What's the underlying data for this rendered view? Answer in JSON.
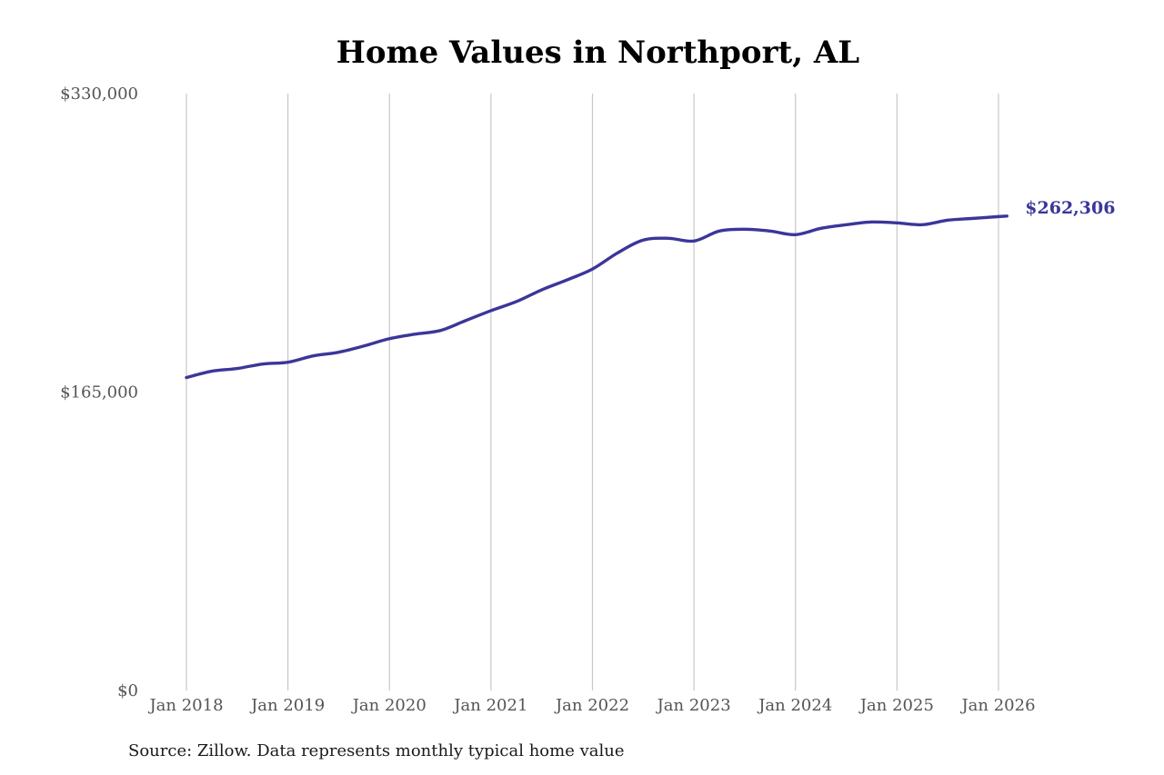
{
  "chart_data": {
    "type": "line",
    "title": "Home Values in Northport, AL",
    "xlabel": "",
    "ylabel": "",
    "ylim": [
      0,
      330000
    ],
    "y_ticks": [
      "$0",
      "$165,000",
      "$330,000"
    ],
    "y_tick_values": [
      0,
      165000,
      330000
    ],
    "x_ticks": [
      "Jan 2018",
      "Jan 2019",
      "Jan 2020",
      "Jan 2021",
      "Jan 2022",
      "Jan 2023",
      "Jan 2024",
      "Jan 2025",
      "Jan 2026"
    ],
    "x_tick_dates": [
      "2018-01",
      "2019-01",
      "2020-01",
      "2021-01",
      "2022-01",
      "2023-01",
      "2024-01",
      "2025-01",
      "2026-01"
    ],
    "grid": "vertical",
    "series": [
      {
        "color": "#3b3699",
        "x": [
          "2018-01",
          "2018-04",
          "2018-07",
          "2018-10",
          "2019-01",
          "2019-04",
          "2019-07",
          "2019-10",
          "2020-01",
          "2020-04",
          "2020-07",
          "2020-10",
          "2021-01",
          "2021-04",
          "2021-07",
          "2021-10",
          "2022-01",
          "2022-04",
          "2022-07",
          "2022-10",
          "2023-01",
          "2023-04",
          "2023-07",
          "2023-10",
          "2024-01",
          "2024-04",
          "2024-07",
          "2024-10",
          "2025-01",
          "2025-04",
          "2025-07",
          "2025-10",
          "2026-01",
          "2026-02"
        ],
        "values": [
          173000,
          176500,
          178000,
          180500,
          181500,
          185000,
          187000,
          190500,
          194500,
          197000,
          199000,
          204500,
          210000,
          215000,
          221500,
          227000,
          233000,
          242000,
          249000,
          250000,
          248500,
          254000,
          255000,
          254000,
          252000,
          255500,
          257500,
          259000,
          258500,
          257500,
          260000,
          261000,
          262000,
          262306
        ]
      }
    ],
    "end_label": "$262,306"
  },
  "source_text": "Source: Zillow. Data represents monthly typical home value"
}
